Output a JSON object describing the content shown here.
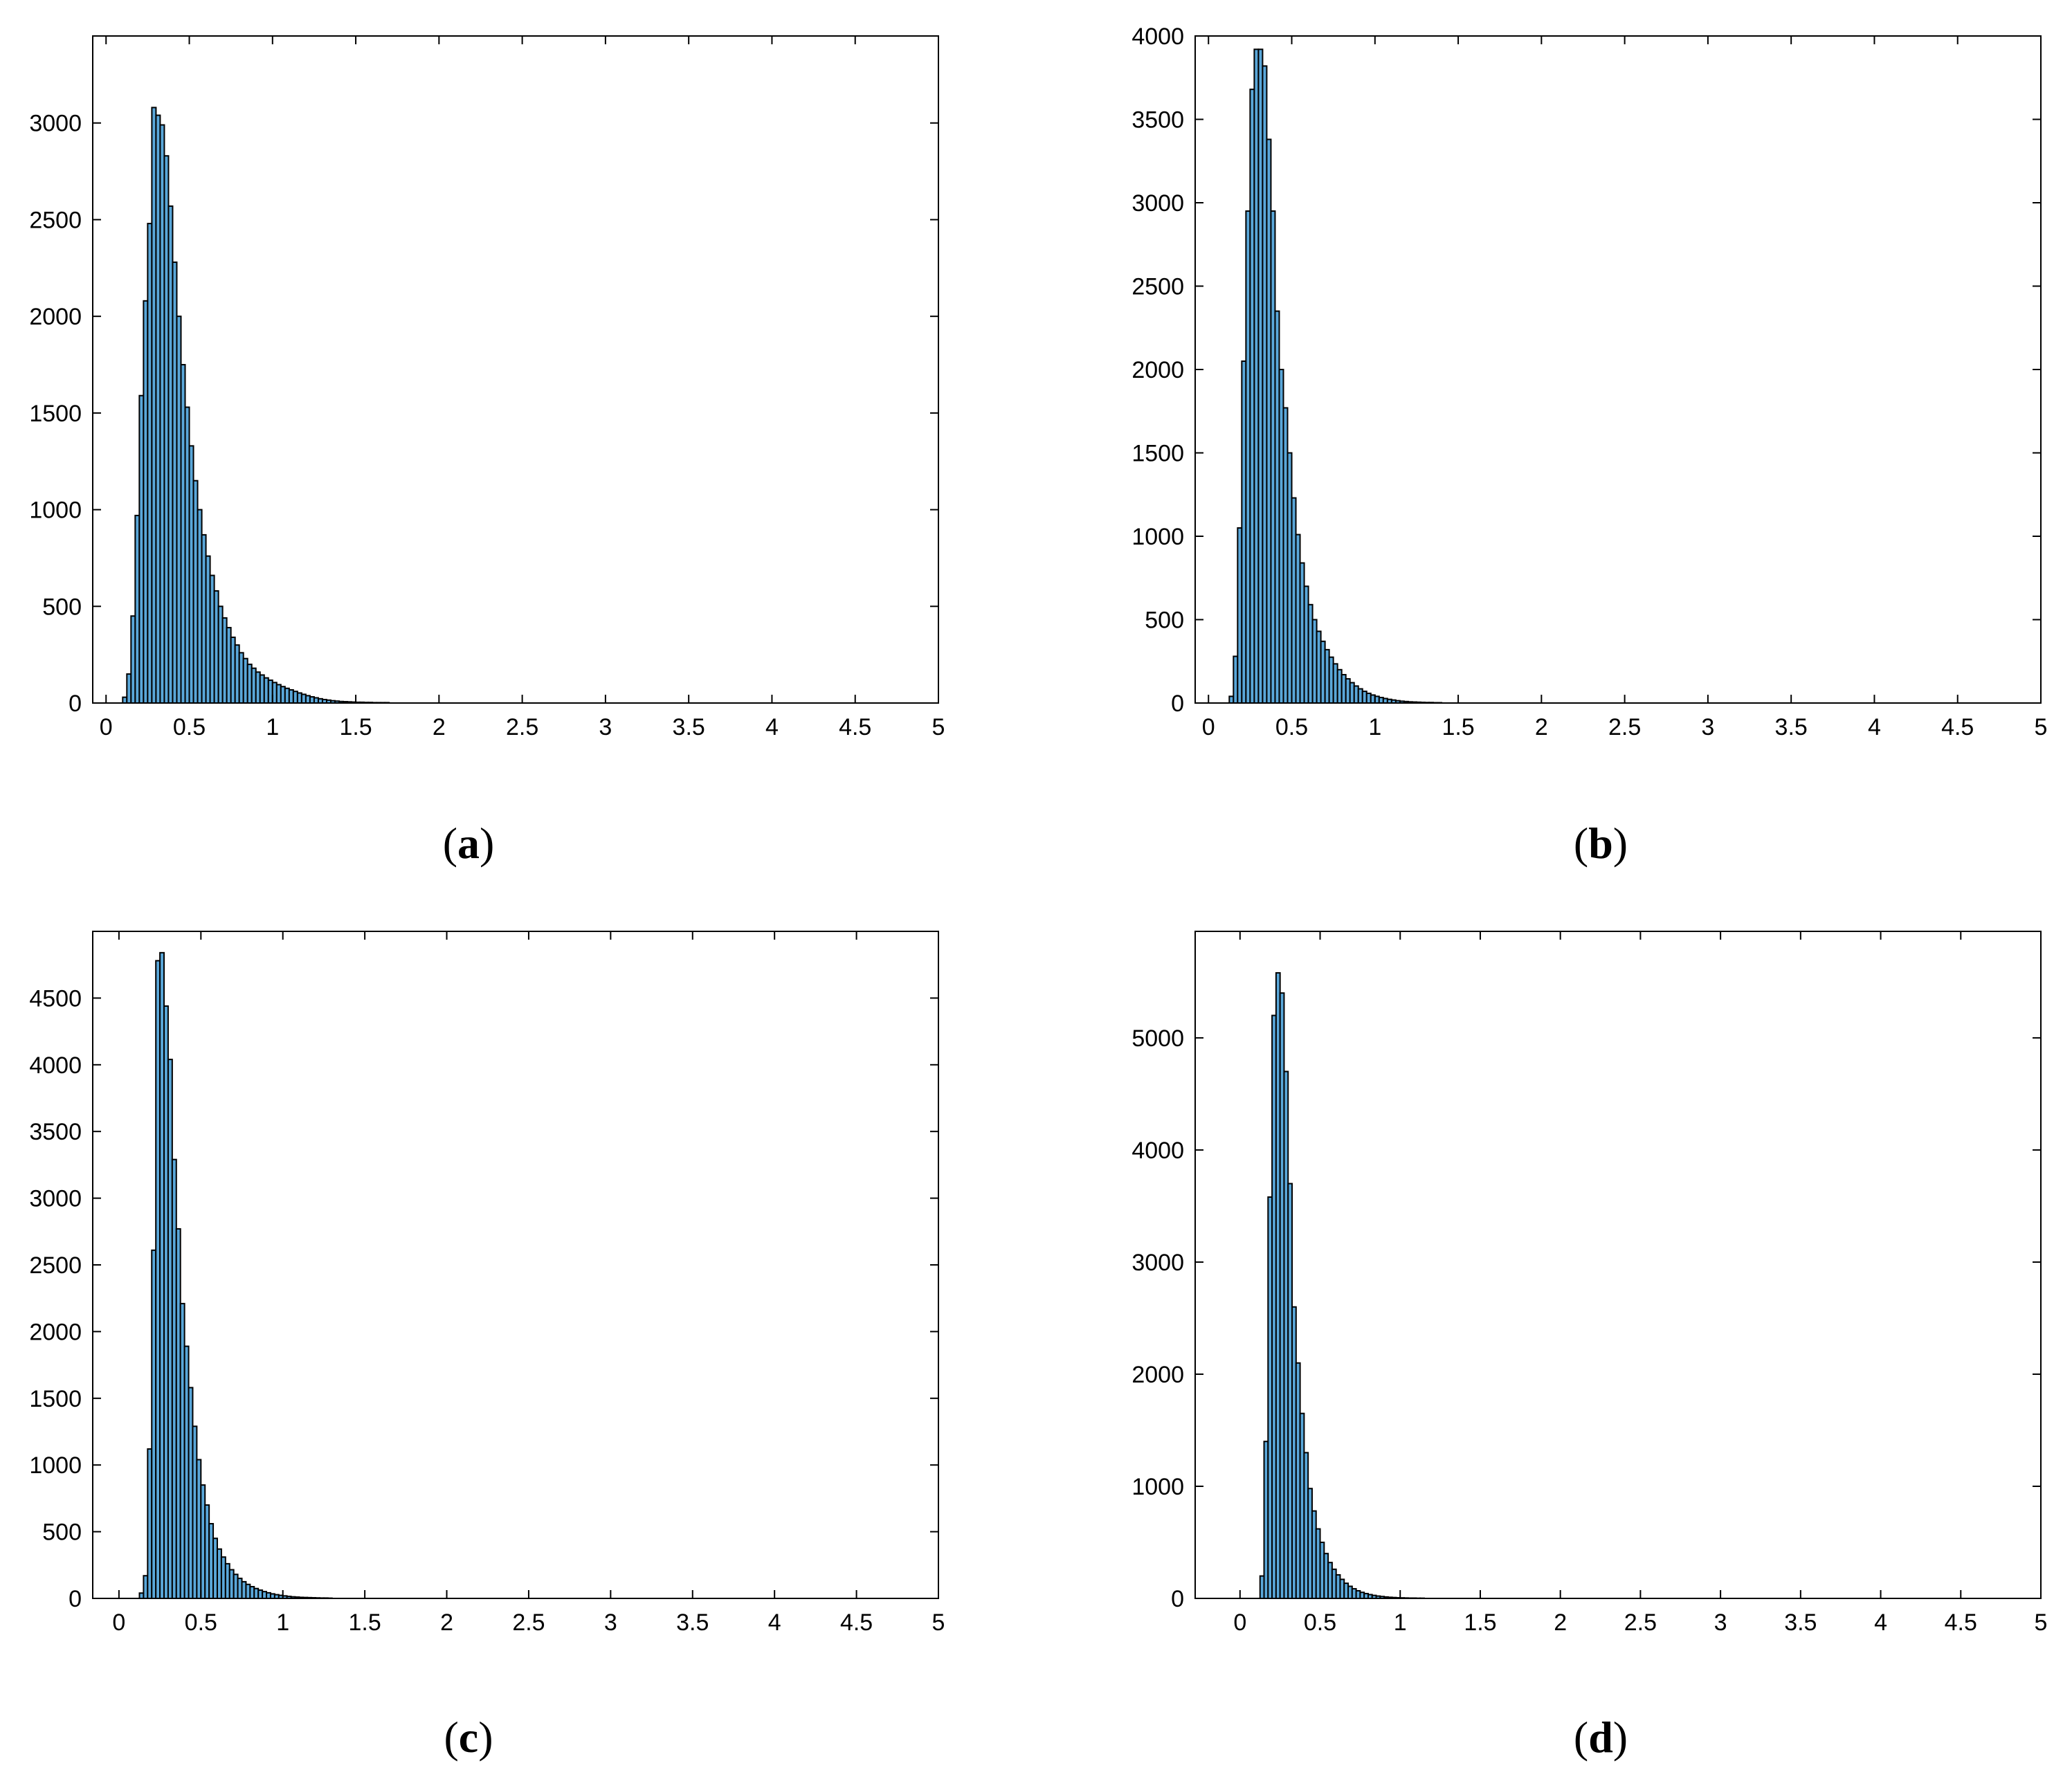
{
  "bar_color": "#5aa7d9",
  "chart_data": [
    {
      "id": "a",
      "type": "bar",
      "caption": "a",
      "bin_width": 0.025,
      "x_start": 0.1,
      "xlim": [
        -0.08,
        5
      ],
      "ylim": [
        0,
        3450
      ],
      "xticks": [
        0,
        0.5,
        1,
        1.5,
        2,
        2.5,
        3,
        3.5,
        4,
        4.5,
        5
      ],
      "xtick_labels": [
        "0",
        "0.5",
        "1",
        "1.5",
        "2",
        "2.5",
        "3",
        "3.5",
        "4",
        "4.5",
        "5"
      ],
      "yticks": [
        0,
        500,
        1000,
        1500,
        2000,
        2500,
        3000
      ],
      "ytick_labels": [
        "0",
        "500",
        "1000",
        "1500",
        "2000",
        "2500",
        "3000"
      ],
      "values": [
        30,
        150,
        450,
        970,
        1590,
        2080,
        2480,
        3080,
        3040,
        2990,
        2830,
        2570,
        2280,
        2000,
        1750,
        1530,
        1330,
        1150,
        1000,
        870,
        760,
        660,
        580,
        500,
        440,
        390,
        340,
        300,
        260,
        230,
        200,
        180,
        160,
        145,
        130,
        118,
        106,
        95,
        85,
        76,
        68,
        60,
        52,
        45,
        38,
        32,
        27,
        22,
        18,
        15,
        12,
        10,
        8,
        7,
        6,
        5,
        4,
        4,
        3,
        3,
        2,
        2,
        2,
        2
      ]
    },
    {
      "id": "b",
      "type": "bar",
      "caption": "b",
      "bin_width": 0.025,
      "x_start": 0.125,
      "xlim": [
        -0.08,
        5
      ],
      "ylim": [
        0,
        4000
      ],
      "xticks": [
        0,
        0.5,
        1,
        1.5,
        2,
        2.5,
        3,
        3.5,
        4,
        4.5,
        5
      ],
      "xtick_labels": [
        "0",
        "0.5",
        "1",
        "1.5",
        "2",
        "2.5",
        "3",
        "3.5",
        "4",
        "4.5",
        "5"
      ],
      "yticks": [
        0,
        500,
        1000,
        1500,
        2000,
        2500,
        3000,
        3500,
        4000
      ],
      "ytick_labels": [
        "0",
        "500",
        "1000",
        "1500",
        "2000",
        "2500",
        "3000",
        "3500",
        "4000"
      ],
      "values": [
        40,
        280,
        1050,
        2050,
        2950,
        3680,
        3920,
        3920,
        3820,
        3380,
        2950,
        2350,
        2000,
        1770,
        1500,
        1230,
        1010,
        840,
        700,
        590,
        500,
        430,
        370,
        320,
        275,
        235,
        200,
        170,
        145,
        122,
        102,
        85,
        70,
        58,
        48,
        40,
        33,
        27,
        22,
        18,
        14,
        11,
        9,
        7,
        6,
        5,
        4,
        3,
        3,
        2,
        2
      ]
    },
    {
      "id": "c",
      "type": "bar",
      "caption": "c",
      "bin_width": 0.025,
      "x_start": 0.125,
      "xlim": [
        -0.16,
        5
      ],
      "ylim": [
        0,
        5000
      ],
      "xticks": [
        0,
        0.5,
        1,
        1.5,
        2,
        2.5,
        3,
        3.5,
        4,
        4.5,
        5
      ],
      "xtick_labels": [
        "0",
        "0.5",
        "1",
        "1.5",
        "2",
        "2.5",
        "3",
        "3.5",
        "4",
        "4.5",
        "5"
      ],
      "yticks": [
        0,
        500,
        1000,
        1500,
        2000,
        2500,
        3000,
        3500,
        4000,
        4500
      ],
      "ytick_labels": [
        "0",
        "500",
        "1000",
        "1500",
        "2000",
        "2500",
        "3000",
        "3500",
        "4000",
        "4500"
      ],
      "values": [
        40,
        170,
        1120,
        2610,
        4780,
        4840,
        4440,
        4040,
        3290,
        2770,
        2210,
        1890,
        1580,
        1290,
        1040,
        850,
        700,
        560,
        450,
        370,
        310,
        260,
        215,
        180,
        150,
        125,
        105,
        88,
        74,
        62,
        51,
        42,
        34,
        28,
        23,
        19,
        15,
        12,
        10,
        8,
        7,
        6,
        5,
        4,
        3,
        3,
        2
      ]
    },
    {
      "id": "d",
      "type": "bar",
      "caption": "d",
      "bin_width": 0.025,
      "x_start": 0.125,
      "xlim": [
        -0.28,
        5
      ],
      "ylim": [
        0,
        5950
      ],
      "xticks": [
        0,
        0.5,
        1,
        1.5,
        2,
        2.5,
        3,
        3.5,
        4,
        4.5,
        5
      ],
      "xtick_labels": [
        "0",
        "0.5",
        "1",
        "1.5",
        "2",
        "2.5",
        "3",
        "3.5",
        "4",
        "4.5",
        "5"
      ],
      "yticks": [
        0,
        1000,
        2000,
        3000,
        4000,
        5000
      ],
      "ytick_labels": [
        "0",
        "1000",
        "2000",
        "3000",
        "4000",
        "5000"
      ],
      "values": [
        200,
        1400,
        3580,
        5200,
        5580,
        5400,
        4700,
        3700,
        2600,
        2100,
        1650,
        1300,
        980,
        780,
        620,
        500,
        400,
        320,
        260,
        210,
        170,
        135,
        108,
        86,
        68,
        54,
        43,
        34,
        27,
        21,
        17,
        13,
        10,
        8,
        6,
        5,
        4,
        3,
        3,
        2,
        2
      ]
    }
  ]
}
